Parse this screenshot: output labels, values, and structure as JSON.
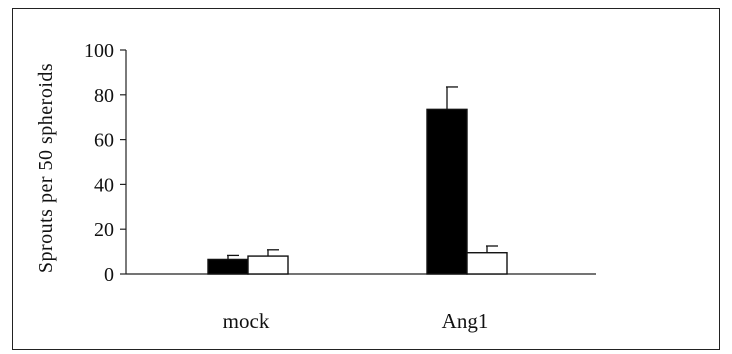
{
  "chart_data": {
    "type": "bar",
    "title": "",
    "xlabel": "",
    "ylabel": "Sprouts per 50 spheroids",
    "ylim": [
      0,
      100
    ],
    "yticks": [
      0,
      20,
      40,
      60,
      80,
      100
    ],
    "categories": [
      "mock",
      "Ang1"
    ],
    "series": [
      {
        "values": [
          6.5,
          73.5
        ],
        "errors": [
          1.8,
          10
        ],
        "color": "#000000"
      },
      {
        "values": [
          8,
          9.5
        ],
        "errors": [
          2.8,
          3
        ],
        "color": "#ffffff"
      }
    ],
    "grid": false,
    "legend": "none"
  }
}
